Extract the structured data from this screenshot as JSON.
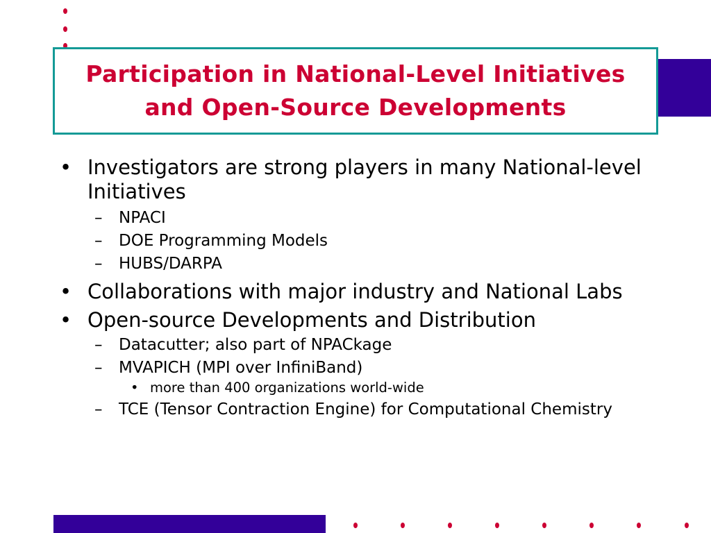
{
  "slide": {
    "title": "Participation in National-Level Initiatives and Open-Source Developments",
    "title_lines": [
      "Participation in National-Level Initiatives",
      "and Open-Source Developments"
    ],
    "bullets": [
      {
        "text": "Investigators are strong players in many National-level Initiatives",
        "children": [
          {
            "text": "NPACI"
          },
          {
            "text": "DOE Programming Models"
          },
          {
            "text": "HUBS/DARPA"
          }
        ]
      },
      {
        "text": "Collaborations with major industry and National Labs"
      },
      {
        "text": "Open-source Developments and Distribution",
        "children": [
          {
            "text": "Datacutter; also part of NPACkage"
          },
          {
            "text": "MVAPICH (MPI over InfiniBand)",
            "children": [
              {
                "text": "more than 400 organizations world-wide"
              }
            ]
          },
          {
            "text": "TCE (Tensor Contraction Engine) for Computational Chemistry"
          }
        ]
      }
    ]
  },
  "colors": {
    "title": "#cc0033",
    "border": "#149a96",
    "accent": "#330099",
    "dots": "#cc0033"
  }
}
